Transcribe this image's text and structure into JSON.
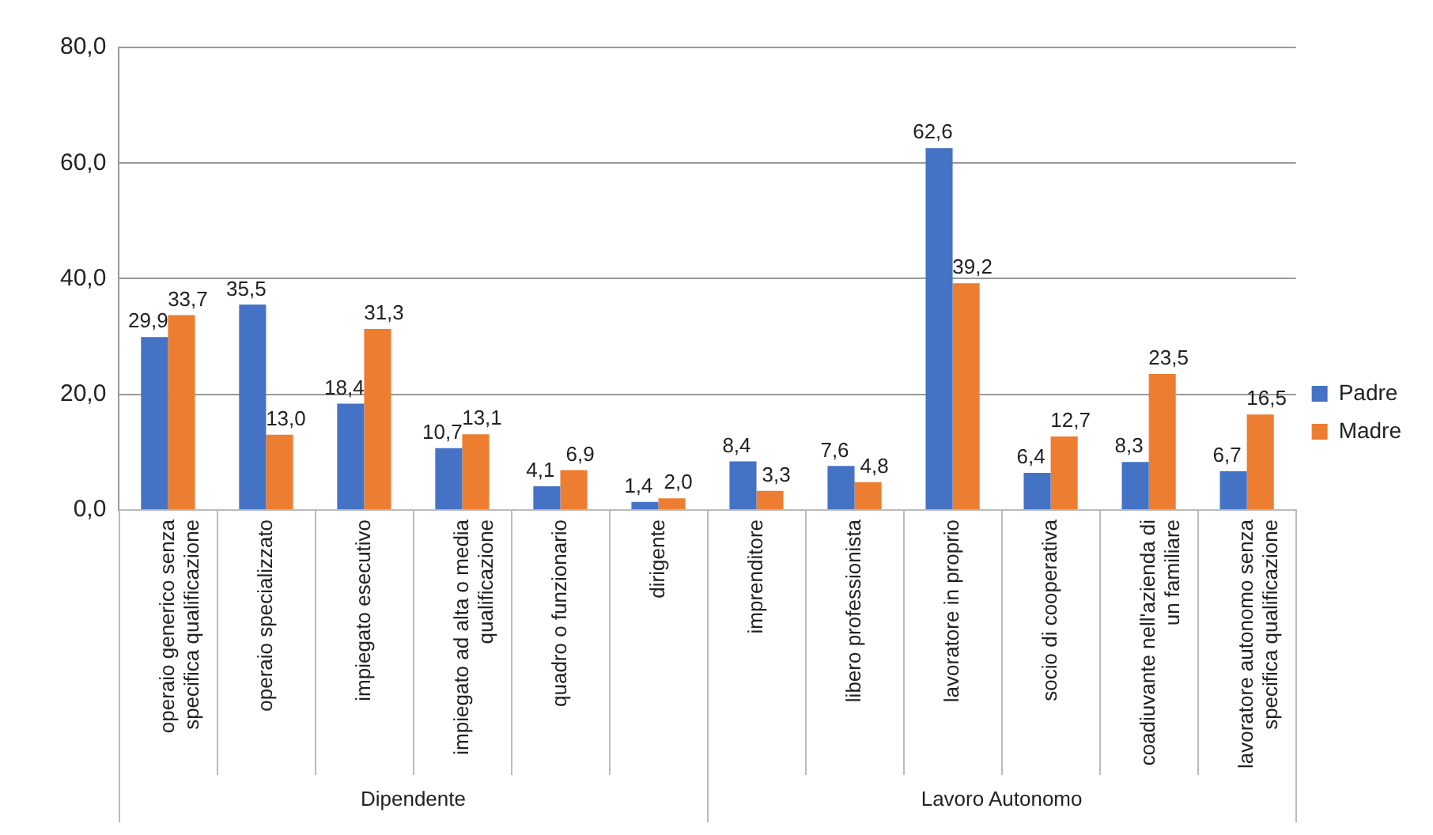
{
  "chart_data": {
    "type": "bar",
    "categories": [
      "operaio generico senza specifica qualificazione",
      "operaio specializzato",
      "impiegato esecutivo",
      "impiegato ad alta o media qualificazione",
      "quadro o funzionario",
      "dirigente",
      "imprenditore",
      "libero professionista",
      "lavoratore in proprio",
      "socio di cooperativa",
      "coadiuvante nell'azienda di un familiare",
      "lavoratore autonomo senza specifica qualificazione"
    ],
    "series": [
      {
        "name": "Padre",
        "color": "#4472c4",
        "values": [
          29.9,
          35.5,
          18.4,
          10.7,
          4.1,
          1.4,
          8.4,
          7.6,
          62.6,
          6.4,
          8.3,
          6.7
        ],
        "value_labels": [
          "29,9",
          "35,5",
          "18,4",
          "10,7",
          "4,1",
          "1,4",
          "8,4",
          "7,6",
          "62,6",
          "6,4",
          "8,3",
          "6,7"
        ]
      },
      {
        "name": "Madre",
        "color": "#ed7d31",
        "values": [
          33.7,
          13.0,
          31.3,
          13.1,
          6.9,
          2.0,
          3.3,
          4.8,
          39.2,
          12.7,
          23.5,
          16.5
        ],
        "value_labels": [
          "33,7",
          "13,0",
          "31,3",
          "13,1",
          "6,9",
          "2,0",
          "3,3",
          "4,8",
          "39,2",
          "12,7",
          "23,5",
          "16,5"
        ]
      }
    ],
    "ylim": [
      0,
      80
    ],
    "yticks": [
      {
        "value": 0,
        "label": "0,0"
      },
      {
        "value": 20,
        "label": "20,0"
      },
      {
        "value": 40,
        "label": "40,0"
      },
      {
        "value": 60,
        "label": "60,0"
      },
      {
        "value": 80,
        "label": "80,0"
      }
    ],
    "grid": "y",
    "legend": "right",
    "annotations": [
      "Dipendente",
      "Lavoro Autonomo"
    ]
  }
}
